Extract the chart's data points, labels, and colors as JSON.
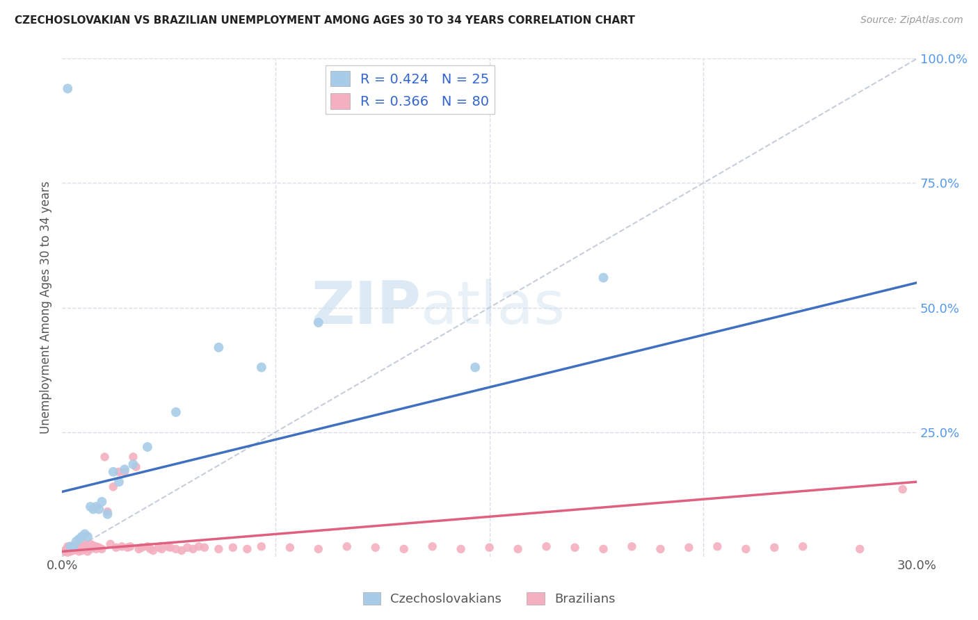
{
  "title": "CZECHOSLOVAKIAN VS BRAZILIAN UNEMPLOYMENT AMONG AGES 30 TO 34 YEARS CORRELATION CHART",
  "source": "Source: ZipAtlas.com",
  "ylabel": "Unemployment Among Ages 30 to 34 years",
  "xmin": 0.0,
  "xmax": 0.3,
  "ymin": 0.0,
  "ymax": 1.0,
  "watermark_zip": "ZIP",
  "watermark_atlas": "atlas",
  "legend_R_czecho": "R = 0.424",
  "legend_N_czecho": "N = 25",
  "legend_R_brazil": "R = 0.366",
  "legend_N_brazil": "N = 80",
  "czecho_color": "#a8cce8",
  "brazil_color": "#f4b0c0",
  "czecho_line_color": "#4070c0",
  "brazil_line_color": "#e06080",
  "ref_line_color": "#c0c8d8",
  "background_color": "#ffffff",
  "grid_color": "#d8dde8",
  "czecho_line_x0": 0.0,
  "czecho_line_y0": 0.13,
  "czecho_line_x1": 0.3,
  "czecho_line_y1": 0.55,
  "brazil_line_x0": 0.0,
  "brazil_line_y0": 0.01,
  "brazil_line_x1": 0.3,
  "brazil_line_y1": 0.15,
  "czecho_points_x": [
    0.002,
    0.003,
    0.004,
    0.005,
    0.006,
    0.007,
    0.008,
    0.009,
    0.01,
    0.011,
    0.012,
    0.013,
    0.014,
    0.016,
    0.018,
    0.02,
    0.022,
    0.025,
    0.03,
    0.04,
    0.055,
    0.07,
    0.09,
    0.145,
    0.19
  ],
  "czecho_points_y": [
    0.94,
    0.02,
    0.02,
    0.03,
    0.035,
    0.04,
    0.045,
    0.04,
    0.1,
    0.095,
    0.1,
    0.095,
    0.11,
    0.085,
    0.17,
    0.15,
    0.175,
    0.185,
    0.22,
    0.29,
    0.42,
    0.38,
    0.47,
    0.38,
    0.56
  ],
  "brazil_points_x": [
    0.001,
    0.001,
    0.002,
    0.002,
    0.002,
    0.003,
    0.003,
    0.003,
    0.004,
    0.004,
    0.005,
    0.005,
    0.006,
    0.006,
    0.007,
    0.007,
    0.008,
    0.008,
    0.009,
    0.009,
    0.01,
    0.01,
    0.011,
    0.011,
    0.012,
    0.012,
    0.013,
    0.014,
    0.015,
    0.016,
    0.017,
    0.018,
    0.019,
    0.02,
    0.021,
    0.022,
    0.023,
    0.024,
    0.025,
    0.026,
    0.027,
    0.028,
    0.03,
    0.031,
    0.032,
    0.034,
    0.035,
    0.037,
    0.038,
    0.04,
    0.042,
    0.044,
    0.046,
    0.048,
    0.05,
    0.055,
    0.06,
    0.065,
    0.07,
    0.08,
    0.09,
    0.1,
    0.11,
    0.12,
    0.13,
    0.14,
    0.15,
    0.16,
    0.17,
    0.18,
    0.19,
    0.2,
    0.21,
    0.22,
    0.23,
    0.24,
    0.25,
    0.26,
    0.28,
    0.295
  ],
  "brazil_points_y": [
    0.01,
    0.012,
    0.008,
    0.015,
    0.02,
    0.01,
    0.015,
    0.02,
    0.012,
    0.018,
    0.015,
    0.02,
    0.01,
    0.018,
    0.012,
    0.02,
    0.015,
    0.025,
    0.01,
    0.02,
    0.015,
    0.025,
    0.018,
    0.022,
    0.015,
    0.02,
    0.018,
    0.015,
    0.2,
    0.09,
    0.025,
    0.14,
    0.018,
    0.17,
    0.02,
    0.17,
    0.018,
    0.02,
    0.2,
    0.18,
    0.015,
    0.018,
    0.02,
    0.015,
    0.012,
    0.018,
    0.015,
    0.02,
    0.018,
    0.015,
    0.012,
    0.018,
    0.015,
    0.02,
    0.018,
    0.015,
    0.018,
    0.015,
    0.02,
    0.018,
    0.015,
    0.02,
    0.018,
    0.015,
    0.02,
    0.015,
    0.018,
    0.015,
    0.02,
    0.018,
    0.015,
    0.02,
    0.015,
    0.018,
    0.02,
    0.015,
    0.018,
    0.02,
    0.015,
    0.135
  ]
}
